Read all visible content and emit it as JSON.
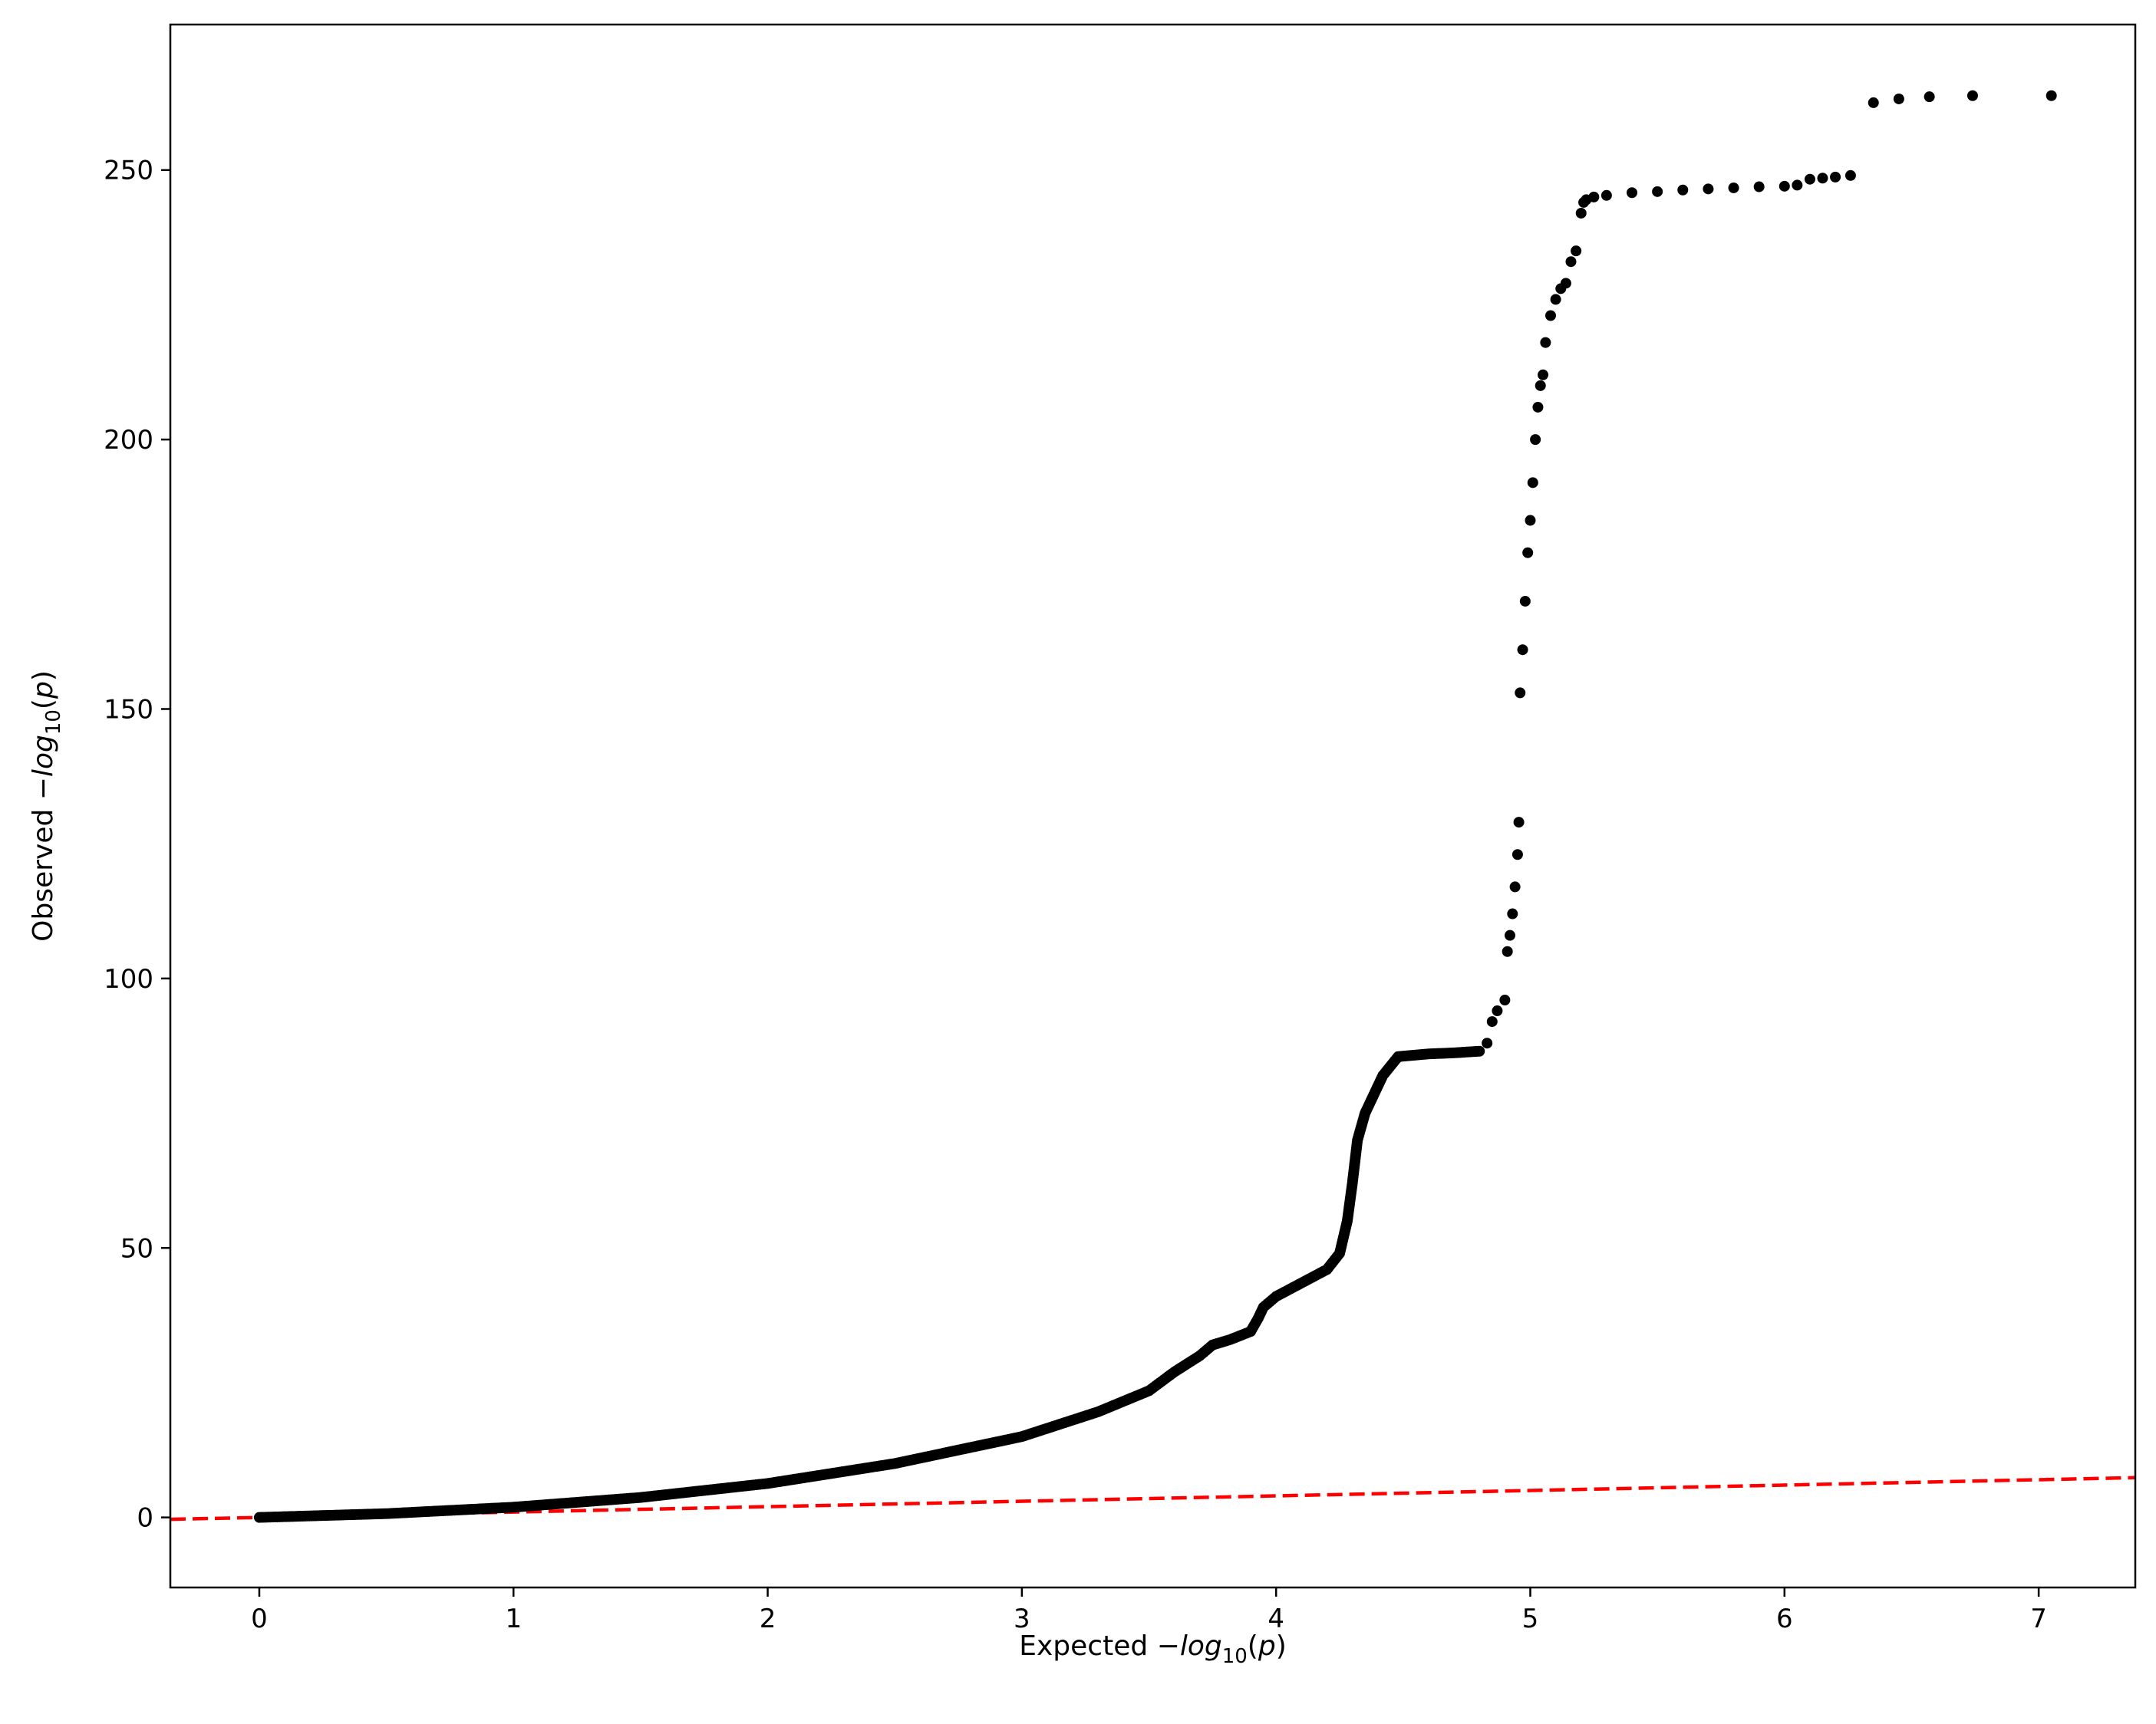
{
  "chart_data": {
    "type": "scatter",
    "title": "",
    "xlabel": {
      "prefix": "Expected −",
      "fn": "log",
      "sub": "10",
      "arg": "(",
      "var": "p",
      "close": ")"
    },
    "ylabel": {
      "prefix": "Observed −",
      "fn": "log",
      "sub": "10",
      "arg": "(",
      "var": "p",
      "close": ")"
    },
    "xlim": [
      -0.35,
      7.38
    ],
    "ylim": [
      -13,
      277
    ],
    "xticks": [
      0,
      1,
      2,
      3,
      4,
      5,
      6,
      7
    ],
    "yticks": [
      0,
      50,
      100,
      150,
      200,
      250
    ],
    "grid": false,
    "legend": "none",
    "colors": {
      "points": "#000000",
      "reference": "#ff0000"
    },
    "reference_line": {
      "style": "dashed",
      "x": [
        -0.35,
        7.38
      ],
      "y": [
        -0.35,
        7.38
      ]
    },
    "series": [
      {
        "color": "#000000",
        "curve_x": [
          0.0,
          0.5,
          1.0,
          1.5,
          2.0,
          2.5,
          3.0,
          3.3,
          3.5,
          3.6,
          3.7,
          3.75,
          3.82,
          3.9,
          3.93,
          3.95,
          4.0,
          4.1,
          4.2,
          4.25,
          4.28,
          4.3,
          4.32,
          4.35,
          4.38,
          4.42,
          4.48,
          4.6,
          4.7,
          4.8
        ],
        "curve_y": [
          0.0,
          0.7,
          1.9,
          3.7,
          6.3,
          10.0,
          15.0,
          19.6,
          23.5,
          27.0,
          30.0,
          32.0,
          33.0,
          34.5,
          37.0,
          39.0,
          41.0,
          43.5,
          46.0,
          49.0,
          55.0,
          62.0,
          70.0,
          75.0,
          78.0,
          82.0,
          85.5,
          86.0,
          86.2,
          86.5
        ],
        "x": [
          4.83,
          4.85,
          4.87,
          4.9,
          4.91,
          4.92,
          4.93,
          4.94,
          4.95,
          4.955,
          4.96,
          4.97,
          4.98,
          4.99,
          5.0,
          5.01,
          5.02,
          5.03,
          5.04,
          5.05,
          5.06,
          5.08,
          5.1,
          5.12,
          5.14,
          5.16,
          5.18,
          5.2,
          5.21,
          5.22,
          5.25,
          5.3,
          5.4,
          5.5,
          5.6,
          5.7,
          5.8,
          5.9,
          6.0,
          6.05,
          6.1,
          6.15,
          6.2,
          6.26,
          6.35,
          6.45,
          6.57,
          6.74,
          7.05
        ],
        "y": [
          88,
          92,
          94,
          96,
          105,
          108,
          112,
          117,
          123,
          129,
          153,
          161,
          170,
          179,
          185,
          192,
          200,
          206,
          210,
          212,
          218,
          223,
          226,
          228,
          229,
          233,
          235,
          242,
          244,
          244.5,
          245,
          245.3,
          245.8,
          246,
          246.3,
          246.5,
          246.7,
          246.9,
          247,
          247.2,
          248.3,
          248.5,
          248.7,
          249,
          262.5,
          263.2,
          263.6,
          263.8,
          263.8
        ]
      }
    ]
  }
}
